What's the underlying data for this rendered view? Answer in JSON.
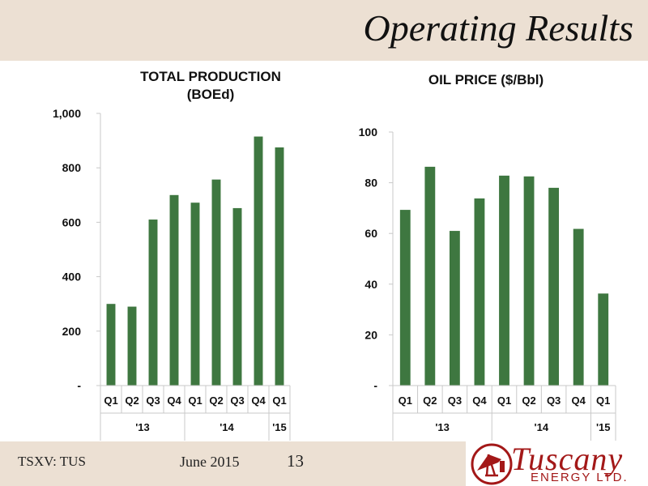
{
  "header": {
    "title": "Operating Results"
  },
  "footer": {
    "ticker": "TSXV: TUS",
    "date": "June 2015",
    "page": "13"
  },
  "logo": {
    "name": "Tuscany",
    "sub": "ENERGY LTD."
  },
  "colors": {
    "bar": "#3e7740",
    "header_bg": "#ece0d3",
    "logo": "#a31818"
  },
  "chart_data": [
    {
      "type": "bar",
      "title": "TOTAL PRODUCTION",
      "subtitle": "(BOEd)",
      "categories": [
        "Q1",
        "Q2",
        "Q3",
        "Q4",
        "Q1",
        "Q2",
        "Q3",
        "Q4",
        "Q1"
      ],
      "groups": [
        {
          "label": "'13",
          "span": 4
        },
        {
          "label": "'14",
          "span": 4
        },
        {
          "label": "'15",
          "span": 1
        }
      ],
      "values": [
        300,
        290,
        610,
        700,
        672,
        757,
        652,
        915,
        875
      ],
      "ylim": [
        0,
        1000
      ],
      "yticks": [
        0,
        200,
        400,
        600,
        800,
        1000
      ],
      "ytick_labels": [
        "-",
        "200",
        "400",
        "600",
        "800",
        "1,000"
      ],
      "grid": false
    },
    {
      "type": "bar",
      "title": "OIL PRICE ($/Bbl)",
      "categories": [
        "Q1",
        "Q2",
        "Q3",
        "Q4",
        "Q1",
        "Q2",
        "Q3",
        "Q4",
        "Q1"
      ],
      "groups": [
        {
          "label": "'13",
          "span": 4
        },
        {
          "label": "'14",
          "span": 4
        },
        {
          "label": "'15",
          "span": 1
        }
      ],
      "values": [
        69.3,
        86.3,
        61.0,
        73.8,
        82.8,
        82.5,
        78.0,
        61.8,
        36.3
      ],
      "ylim": [
        0,
        100
      ],
      "yticks": [
        0,
        20,
        40,
        60,
        80,
        100
      ],
      "ytick_labels": [
        "-",
        "20",
        "40",
        "60",
        "80",
        "100"
      ],
      "grid": false
    }
  ]
}
